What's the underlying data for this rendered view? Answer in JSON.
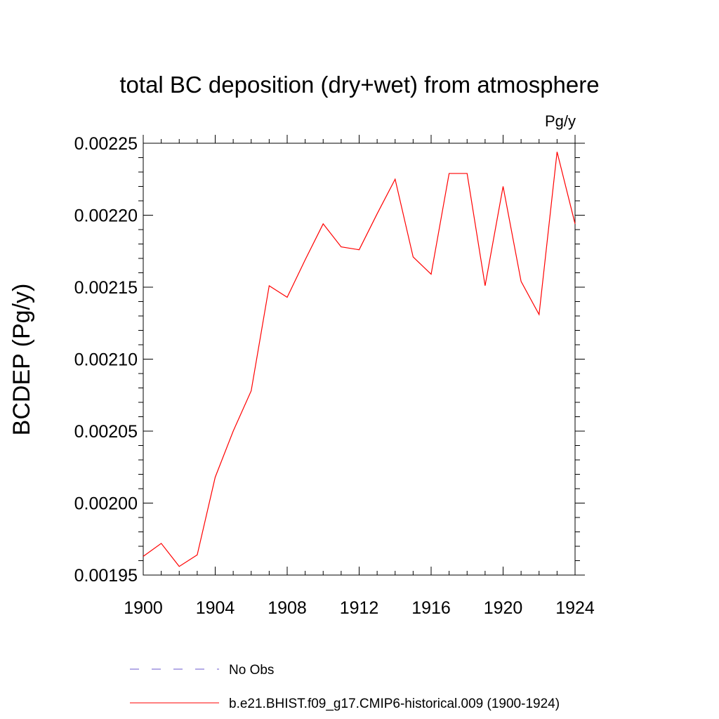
{
  "chart_data": {
    "type": "line",
    "title": "total BC deposition (dry+wet) from atmosphere",
    "units": "Pg/y",
    "xlabel": "",
    "ylabel": "BCDEP  (Pg/y)",
    "xlim": [
      1900,
      1924
    ],
    "ylim": [
      0.00195,
      0.00225
    ],
    "xticks": [
      "1900",
      "1904",
      "1908",
      "1912",
      "1916",
      "1920",
      "1924"
    ],
    "yticks": [
      "0.00195",
      "0.00200",
      "0.00205",
      "0.00210",
      "0.00215",
      "0.00220",
      "0.00225"
    ],
    "grid": false,
    "series": [
      {
        "name": "b.e21.BHIST.f09_g17.CMIP6-historical.009 (1900-1924)",
        "color": "#ff0000",
        "style": "solid",
        "x": [
          1900,
          1901,
          1902,
          1903,
          1904,
          1905,
          1906,
          1907,
          1908,
          1909,
          1910,
          1911,
          1912,
          1913,
          1914,
          1915,
          1916,
          1917,
          1918,
          1919,
          1920,
          1921,
          1922,
          1923,
          1924
        ],
        "y": [
          0.001963,
          0.001972,
          0.001956,
          0.001964,
          0.002018,
          0.00205,
          0.002078,
          0.002151,
          0.002143,
          0.002169,
          0.002194,
          0.002178,
          0.002176,
          0.002201,
          0.002225,
          0.002171,
          0.002159,
          0.002229,
          0.002229,
          0.002151,
          0.00222,
          0.002154,
          0.002131,
          0.002244,
          0.002194
        ]
      }
    ],
    "legend": [
      {
        "label": "No Obs",
        "color": "#6a5acd",
        "style": "dashed"
      },
      {
        "label": "b.e21.BHIST.f09_g17.CMIP6-historical.009 (1900-1924)",
        "color": "#ff0000",
        "style": "solid"
      }
    ],
    "legend_position": "bottom"
  }
}
